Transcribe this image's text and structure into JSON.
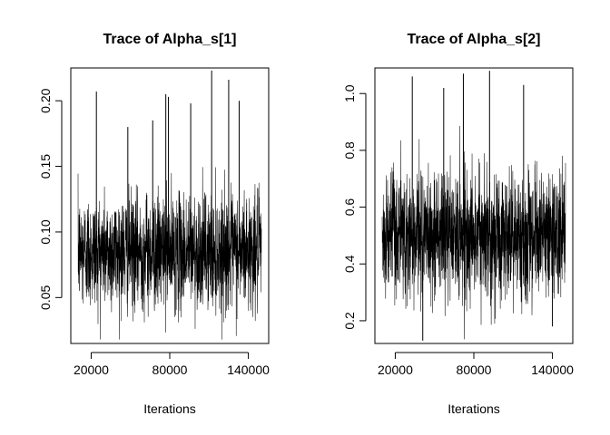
{
  "chart_data": [
    {
      "type": "line",
      "title": "Trace of Alpha_s[1]",
      "xlabel": "Iterations",
      "ylabel": "",
      "xlim": [
        10000,
        150000
      ],
      "ylim": [
        0.015,
        0.225
      ],
      "x_ticks": [
        20000,
        80000,
        140000
      ],
      "y_ticks": [
        0.05,
        0.1,
        0.15,
        0.2
      ],
      "x_tick_labels": [
        "20000",
        "80000",
        "140000"
      ],
      "y_tick_labels": [
        "0.05",
        "0.10",
        "0.15",
        "0.20"
      ],
      "series": [
        {
          "color": "#000000",
          "x_range": [
            10000,
            150000
          ],
          "typical_range": [
            0.04,
            0.13
          ],
          "extremes": [
            0.018,
            0.223
          ],
          "spikes": [
            {
              "x": 24000,
              "y": 0.207
            },
            {
              "x": 77000,
              "y": 0.205
            },
            {
              "x": 79000,
              "y": 0.203
            },
            {
              "x": 96000,
              "y": 0.198
            },
            {
              "x": 112000,
              "y": 0.223
            },
            {
              "x": 125000,
              "y": 0.216
            },
            {
              "x": 133000,
              "y": 0.2
            },
            {
              "x": 67000,
              "y": 0.185
            },
            {
              "x": 48000,
              "y": 0.18
            }
          ]
        }
      ]
    },
    {
      "type": "line",
      "title": "Trace of Alpha_s[2]",
      "xlabel": "Iterations",
      "ylabel": "",
      "xlim": [
        10000,
        150000
      ],
      "ylim": [
        0.12,
        1.09
      ],
      "x_ticks": [
        20000,
        80000,
        140000
      ],
      "y_ticks": [
        0.2,
        0.4,
        0.6,
        0.8,
        1.0
      ],
      "x_tick_labels": [
        "20000",
        "80000",
        "140000"
      ],
      "y_tick_labels": [
        "0.2",
        "0.4",
        "0.6",
        "0.8",
        "1.0"
      ],
      "series": [
        {
          "color": "#000000",
          "x_range": [
            10000,
            150000
          ],
          "typical_range": [
            0.27,
            0.73
          ],
          "extremes": [
            0.13,
            1.08
          ],
          "spikes": [
            {
              "x": 33000,
              "y": 1.06
            },
            {
              "x": 72000,
              "y": 1.07
            },
            {
              "x": 92000,
              "y": 1.08
            },
            {
              "x": 57000,
              "y": 1.02
            },
            {
              "x": 118000,
              "y": 1.03
            },
            {
              "x": 41000,
              "y": 0.13
            },
            {
              "x": 140000,
              "y": 0.18
            }
          ]
        }
      ]
    }
  ]
}
